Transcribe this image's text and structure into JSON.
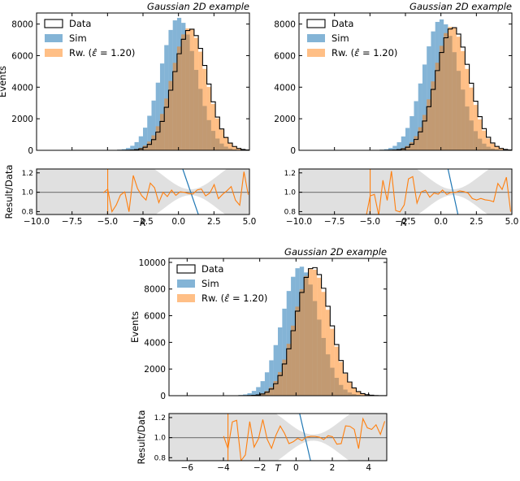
{
  "colors": {
    "sim": "#1f77b4",
    "rw": "#ff7f0e",
    "data": "#000000",
    "band": "#d3d3d3",
    "unity": "#808080"
  },
  "legend": {
    "data": "Data",
    "sim": "Sim",
    "rw": "Rw. ($\\hat{\\varepsilon} = 1.20$)",
    "rw_prefix": "Rw. (",
    "rw_eps": "ε̂",
    "rw_val": " = 1.20)"
  },
  "chart_data": [
    {
      "type": "histogram",
      "title": "Gaussian 2D example",
      "xlabel": "R",
      "ylabel": "Events",
      "ratio_ylabel": "Result/Data",
      "xlim": [
        -10,
        5
      ],
      "ylim": [
        0,
        8700
      ],
      "ratio_ylim": [
        0.77,
        1.24
      ],
      "xticks": [
        -10.0,
        -7.5,
        -5.0,
        -2.5,
        0.0,
        2.5,
        5.0
      ],
      "xtick_labels": [
        "−10.0",
        "−7.5",
        "−5.0",
        "−2.5",
        "0.0",
        "2.5",
        "5.0"
      ],
      "yticks": [
        0,
        2000,
        4000,
        6000,
        8000
      ],
      "ratio_yticks": [
        0.8,
        1.0,
        1.2
      ],
      "bins": {
        "start": -10,
        "width": 0.3,
        "count": 50
      },
      "series": [
        {
          "name": "Data",
          "style": "step",
          "mu": 0.85,
          "sigma": 1.18,
          "peak": 7700
        },
        {
          "name": "Sim",
          "style": "filled",
          "mu": 0.0,
          "sigma": 1.25,
          "peak": 8400
        },
        {
          "name": "Rw. (ε̂ = 1.20)",
          "style": "filled",
          "mu": 0.75,
          "sigma": 1.22,
          "peak": 7750
        }
      ],
      "ratio_data": {
        "sim_line": [
          [
            0.3,
            1.24
          ],
          [
            1.4,
            0.77
          ]
        ],
        "band_from": -10,
        "band_to": 5
      }
    },
    {
      "type": "histogram",
      "title": "Gaussian 2D example",
      "xlabel": "R*",
      "ylabel": "",
      "ratio_ylabel": "",
      "xlim": [
        -10,
        5
      ],
      "ylim": [
        0,
        8700
      ],
      "ratio_ylim": [
        0.77,
        1.24
      ],
      "xticks": [
        -10.0,
        -7.5,
        -5.0,
        -2.5,
        0.0,
        2.5,
        5.0
      ],
      "xtick_labels": [
        "−10.0",
        "−7.5",
        "−5.0",
        "−2.5",
        "0.0",
        "2.5",
        "5.0"
      ],
      "yticks": [
        0,
        2000,
        4000,
        6000,
        8000
      ],
      "ratio_yticks": [
        0.8,
        1.0,
        1.2
      ],
      "bins": {
        "start": -10,
        "width": 0.3,
        "count": 50
      },
      "series": [
        {
          "name": "Data",
          "style": "step",
          "mu": 0.85,
          "sigma": 1.18,
          "peak": 7800
        },
        {
          "name": "Sim",
          "style": "filled",
          "mu": 0.0,
          "sigma": 1.25,
          "peak": 8300
        },
        {
          "name": "Rw. (ε̂ = 1.20)",
          "style": "filled",
          "mu": 0.75,
          "sigma": 1.2,
          "peak": 7850
        }
      ],
      "ratio_data": {
        "sim_line": [
          [
            0.5,
            1.24
          ],
          [
            1.2,
            0.77
          ]
        ],
        "band_from": -10,
        "band_to": 5
      }
    },
    {
      "type": "histogram",
      "title": "Gaussian 2D example",
      "xlabel": "T",
      "ylabel": "Events",
      "ratio_ylabel": "Result/Data",
      "xlim": [
        -7,
        5
      ],
      "ylim": [
        0,
        10300
      ],
      "ratio_ylim": [
        0.77,
        1.24
      ],
      "xticks": [
        -6,
        -4,
        -2,
        0,
        2,
        4
      ],
      "xtick_labels": [
        "−6",
        "−4",
        "−2",
        "0",
        "2",
        "4"
      ],
      "yticks": [
        0,
        2000,
        4000,
        6000,
        8000,
        10000
      ],
      "ratio_yticks": [
        0.8,
        1.0,
        1.2
      ],
      "bins": {
        "start": -7,
        "width": 0.24,
        "count": 50
      },
      "series": [
        {
          "name": "Data",
          "style": "step",
          "mu": 0.95,
          "sigma": 0.95,
          "peak": 9650
        },
        {
          "name": "Sim",
          "style": "filled",
          "mu": 0.25,
          "sigma": 1.0,
          "peak": 9700
        },
        {
          "name": "Rw. (ε̂ = 1.20)",
          "style": "filled",
          "mu": 0.9,
          "sigma": 0.97,
          "peak": 9550
        }
      ],
      "ratio_data": {
        "sim_line": [
          [
            0.2,
            1.24
          ],
          [
            0.8,
            0.77
          ]
        ],
        "band_from": -7,
        "band_to": 5
      }
    }
  ]
}
